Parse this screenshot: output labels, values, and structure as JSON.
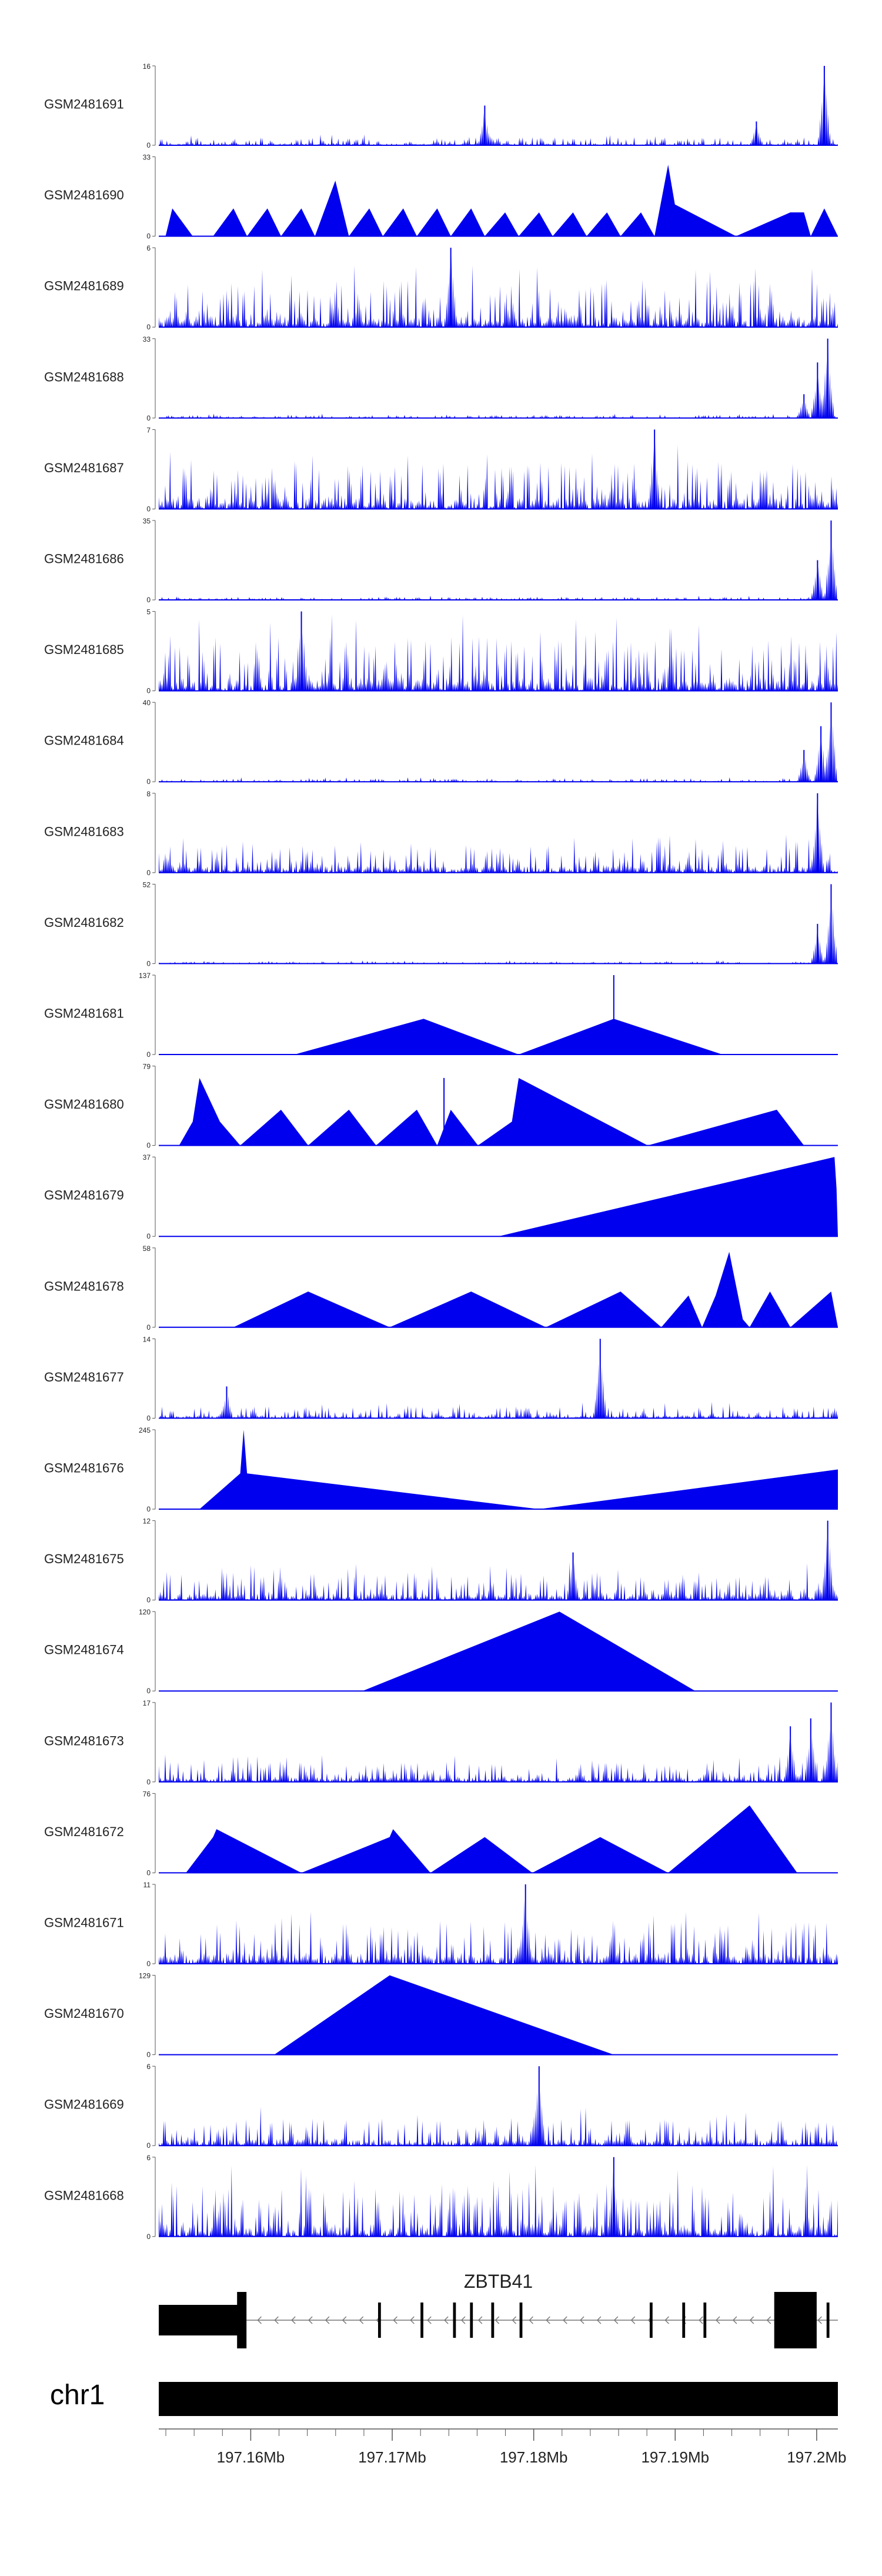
{
  "chart_data": {
    "type": "area",
    "x_unit": "Mb",
    "x_range": [
      197.1535,
      197.2015
    ],
    "tracks": [
      {
        "name": "GSM2481691",
        "ymax": 16,
        "shape": "dense",
        "seed": 11,
        "base": 0.1,
        "spikes": [
          [
            0.48,
            0.5
          ],
          [
            0.88,
            0.3
          ],
          [
            0.98,
            1.0
          ]
        ]
      },
      {
        "name": "GSM2481690",
        "ymax": 33,
        "shape": "peaks",
        "points": [
          [
            0.01,
            0
          ],
          [
            0.02,
            0.35
          ],
          [
            0.05,
            0
          ],
          [
            0.08,
            0
          ],
          [
            0.11,
            0.35
          ],
          [
            0.13,
            0
          ],
          [
            0.16,
            0.35
          ],
          [
            0.18,
            0
          ],
          [
            0.21,
            0.35
          ],
          [
            0.23,
            0
          ],
          [
            0.26,
            0.7
          ],
          [
            0.28,
            0
          ],
          [
            0.31,
            0.35
          ],
          [
            0.33,
            0
          ],
          [
            0.36,
            0.35
          ],
          [
            0.38,
            0
          ],
          [
            0.41,
            0.35
          ],
          [
            0.43,
            0
          ],
          [
            0.46,
            0.35
          ],
          [
            0.48,
            0
          ],
          [
            0.51,
            0.3
          ],
          [
            0.53,
            0
          ],
          [
            0.56,
            0.3
          ],
          [
            0.58,
            0
          ],
          [
            0.61,
            0.3
          ],
          [
            0.63,
            0
          ],
          [
            0.66,
            0.3
          ],
          [
            0.68,
            0
          ],
          [
            0.71,
            0.3
          ],
          [
            0.73,
            0
          ],
          [
            0.75,
            0.9
          ],
          [
            0.76,
            0.4
          ],
          [
            0.85,
            0
          ],
          [
            0.93,
            0.3
          ],
          [
            0.95,
            0.3
          ],
          [
            0.96,
            0
          ],
          [
            0.98,
            0.35
          ],
          [
            1.0,
            0
          ]
        ]
      },
      {
        "name": "GSM2481689",
        "ymax": 6,
        "shape": "dense",
        "seed": 23,
        "base": 0.6,
        "spikes": [
          [
            0.43,
            1.0
          ]
        ]
      },
      {
        "name": "GSM2481688",
        "ymax": 33,
        "shape": "dense",
        "seed": 31,
        "base": 0.04,
        "spikes": [
          [
            0.95,
            0.3
          ],
          [
            0.97,
            0.7
          ],
          [
            0.985,
            1.0
          ]
        ]
      },
      {
        "name": "GSM2481687",
        "ymax": 7,
        "shape": "dense",
        "seed": 37,
        "base": 0.6,
        "spikes": [
          [
            0.73,
            1.0
          ]
        ]
      },
      {
        "name": "GSM2481686",
        "ymax": 35,
        "shape": "dense",
        "seed": 41,
        "base": 0.04,
        "spikes": [
          [
            0.97,
            0.5
          ],
          [
            0.99,
            1.0
          ]
        ]
      },
      {
        "name": "GSM2481685",
        "ymax": 5,
        "shape": "dense",
        "seed": 43,
        "base": 0.7,
        "spikes": [
          [
            0.21,
            1.0
          ]
        ]
      },
      {
        "name": "GSM2481684",
        "ymax": 40,
        "shape": "dense",
        "seed": 47,
        "base": 0.04,
        "spikes": [
          [
            0.95,
            0.4
          ],
          [
            0.975,
            0.7
          ],
          [
            0.99,
            1.0
          ]
        ]
      },
      {
        "name": "GSM2481683",
        "ymax": 8,
        "shape": "dense",
        "seed": 53,
        "base": 0.35,
        "spikes": [
          [
            0.97,
            1.0
          ]
        ]
      },
      {
        "name": "GSM2481682",
        "ymax": 52,
        "shape": "dense",
        "seed": 59,
        "base": 0.03,
        "spikes": [
          [
            0.97,
            0.5
          ],
          [
            0.99,
            1.0
          ]
        ]
      },
      {
        "name": "GSM2481681",
        "ymax": 137,
        "shape": "peaks",
        "points": [
          [
            0.2,
            0
          ],
          [
            0.39,
            0.45
          ],
          [
            0.53,
            0
          ],
          [
            0.67,
            0.45
          ],
          [
            0.83,
            0
          ]
        ],
        "spikes": [
          [
            0.67,
            1.0
          ]
        ]
      },
      {
        "name": "GSM2481680",
        "ymax": 79,
        "shape": "peaks",
        "points": [
          [
            0.03,
            0
          ],
          [
            0.05,
            0.3
          ],
          [
            0.06,
            0.85
          ],
          [
            0.09,
            0.3
          ],
          [
            0.12,
            0
          ],
          [
            0.18,
            0.45
          ],
          [
            0.22,
            0
          ],
          [
            0.28,
            0.45
          ],
          [
            0.32,
            0
          ],
          [
            0.38,
            0.45
          ],
          [
            0.41,
            0
          ],
          [
            0.43,
            0.45
          ],
          [
            0.47,
            0
          ],
          [
            0.52,
            0.3
          ],
          [
            0.53,
            0.85
          ],
          [
            0.72,
            0
          ],
          [
            0.91,
            0.45
          ],
          [
            0.95,
            0
          ]
        ],
        "spikes": [
          [
            0.42,
            0.85
          ]
        ]
      },
      {
        "name": "GSM2481679",
        "ymax": 37,
        "shape": "peaks",
        "points": [
          [
            0.5,
            0
          ],
          [
            0.995,
            1.0
          ],
          [
            0.998,
            0.6
          ],
          [
            1.0,
            0
          ]
        ]
      },
      {
        "name": "GSM2481678",
        "ymax": 58,
        "shape": "peaks",
        "points": [
          [
            0.11,
            0
          ],
          [
            0.22,
            0.45
          ],
          [
            0.34,
            0
          ],
          [
            0.46,
            0.45
          ],
          [
            0.57,
            0
          ],
          [
            0.68,
            0.45
          ],
          [
            0.74,
            0
          ],
          [
            0.78,
            0.4
          ],
          [
            0.8,
            0
          ],
          [
            0.82,
            0.4
          ],
          [
            0.84,
            0.95
          ],
          [
            0.86,
            0.1
          ],
          [
            0.87,
            0
          ],
          [
            0.9,
            0.45
          ],
          [
            0.93,
            0
          ],
          [
            0.99,
            0.45
          ],
          [
            1.0,
            0
          ]
        ]
      },
      {
        "name": "GSM2481677",
        "ymax": 14,
        "shape": "dense",
        "seed": 61,
        "base": 0.15,
        "spikes": [
          [
            0.65,
            1.0
          ],
          [
            0.1,
            0.4
          ]
        ]
      },
      {
        "name": "GSM2481676",
        "ymax": 245,
        "shape": "peaks",
        "points": [
          [
            0.06,
            0
          ],
          [
            0.12,
            0.45
          ],
          [
            0.125,
            1.0
          ],
          [
            0.13,
            0.45
          ],
          [
            0.56,
            0
          ],
          [
            1.0,
            0.5
          ]
        ]
      },
      {
        "name": "GSM2481675",
        "ymax": 12,
        "shape": "dense",
        "seed": 67,
        "base": 0.35,
        "spikes": [
          [
            0.985,
            1.0
          ],
          [
            0.61,
            0.6
          ]
        ]
      },
      {
        "name": "GSM2481674",
        "ymax": 120,
        "shape": "peaks",
        "points": [
          [
            0.3,
            0
          ],
          [
            0.59,
            1.0
          ],
          [
            0.79,
            0
          ]
        ]
      },
      {
        "name": "GSM2481673",
        "ymax": 17,
        "shape": "dense",
        "seed": 71,
        "base": 0.25,
        "spikes": [
          [
            0.93,
            0.7
          ],
          [
            0.96,
            0.8
          ],
          [
            0.99,
            1.0
          ]
        ]
      },
      {
        "name": "GSM2481672",
        "ymax": 76,
        "shape": "peaks",
        "points": [
          [
            0.04,
            0
          ],
          [
            0.08,
            0.45
          ],
          [
            0.085,
            0.55
          ],
          [
            0.21,
            0
          ],
          [
            0.34,
            0.45
          ],
          [
            0.345,
            0.55
          ],
          [
            0.4,
            0
          ],
          [
            0.48,
            0.45
          ],
          [
            0.55,
            0
          ],
          [
            0.65,
            0.45
          ],
          [
            0.75,
            0
          ],
          [
            0.87,
            0.85
          ],
          [
            0.94,
            0
          ]
        ]
      },
      {
        "name": "GSM2481671",
        "ymax": 11,
        "shape": "dense",
        "seed": 73,
        "base": 0.55,
        "spikes": [
          [
            0.54,
            1.0
          ]
        ]
      },
      {
        "name": "GSM2481670",
        "ymax": 129,
        "shape": "peaks",
        "points": [
          [
            0.17,
            0
          ],
          [
            0.34,
            1.0
          ],
          [
            0.67,
            0
          ]
        ]
      },
      {
        "name": "GSM2481669",
        "ymax": 6,
        "shape": "dense",
        "seed": 79,
        "base": 0.35,
        "spikes": [
          [
            0.56,
            1.0
          ]
        ]
      },
      {
        "name": "GSM2481668",
        "ymax": 6,
        "shape": "dense",
        "seed": 83,
        "base": 0.65,
        "spikes": [
          [
            0.67,
            1.0
          ]
        ]
      }
    ],
    "gene": {
      "name": "ZBTB41",
      "strand": "-",
      "exons_mb": [
        [
          197.1535,
          197.1597
        ],
        [
          197.169,
          197.1692
        ],
        [
          197.172,
          197.1722
        ],
        [
          197.1743,
          197.1745
        ],
        [
          197.1755,
          197.1757
        ],
        [
          197.177,
          197.1772
        ],
        [
          197.179,
          197.1792
        ],
        [
          197.1882,
          197.1884
        ],
        [
          197.1905,
          197.1907
        ],
        [
          197.192,
          197.1922
        ],
        [
          197.197,
          197.2
        ],
        [
          197.2007,
          197.2009
        ]
      ],
      "span_mb": [
        197.1535,
        197.2015
      ]
    },
    "chromosome": "chr1",
    "axis_ticks_mb": [
      197.16,
      197.17,
      197.18,
      197.19,
      197.2
    ],
    "axis_tick_labels": [
      "197.16Mb",
      "197.17Mb",
      "197.18Mb",
      "197.19Mb",
      "197.2Mb"
    ],
    "colors": {
      "signal": "#0000ee",
      "gene": "#000000",
      "axis": "#555555",
      "text": "#222222"
    }
  }
}
